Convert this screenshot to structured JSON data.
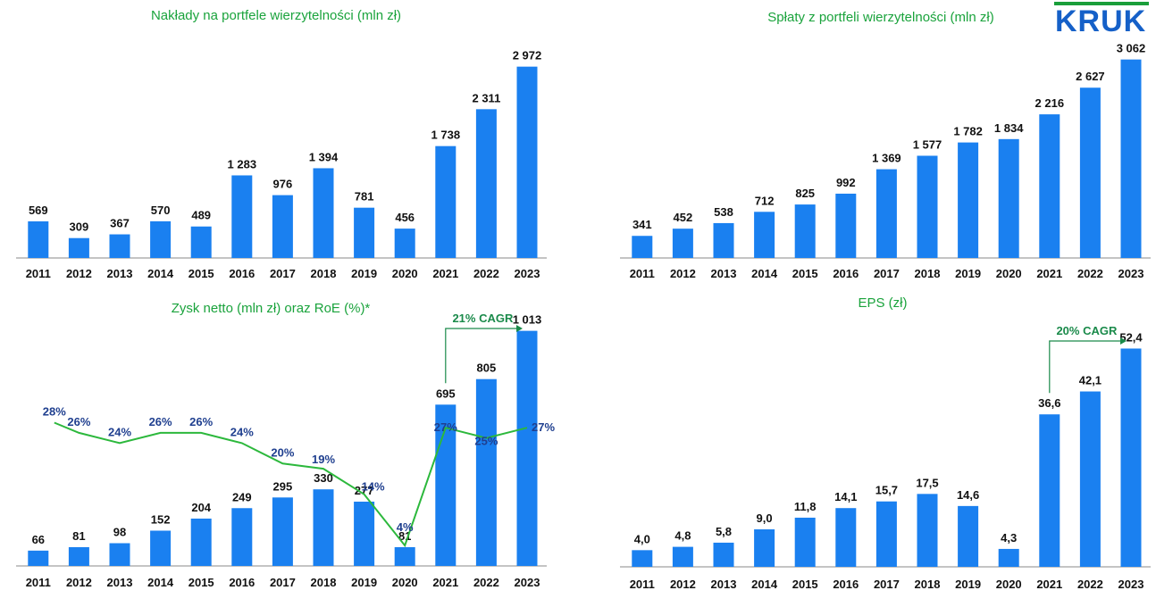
{
  "brand": {
    "logo_text": "KRUK"
  },
  "chart_data": [
    {
      "id": "naklady",
      "type": "bar",
      "title": "Nakłady na portfele wierzytelności (mln zł)",
      "categories": [
        "2011",
        "2012",
        "2013",
        "2014",
        "2015",
        "2016",
        "2017",
        "2018",
        "2019",
        "2020",
        "2021",
        "2022",
        "2023"
      ],
      "values": [
        569,
        309,
        367,
        570,
        489,
        1283,
        976,
        1394,
        781,
        456,
        1738,
        2311,
        2972
      ],
      "value_labels": [
        "569",
        "309",
        "367",
        "570",
        "489",
        "1 283",
        "976",
        "1 394",
        "781",
        "456",
        "1 738",
        "2 311",
        "2 972"
      ],
      "ylim": [
        0,
        3300
      ],
      "bar_color": "#1a80f0"
    },
    {
      "id": "splaty",
      "type": "bar",
      "title": "Spłaty z portfeli wierzytelności  (mln zł)",
      "categories": [
        "2011",
        "2012",
        "2013",
        "2014",
        "2015",
        "2016",
        "2017",
        "2018",
        "2019",
        "2020",
        "2021",
        "2022",
        "2023"
      ],
      "values": [
        341,
        452,
        538,
        712,
        825,
        992,
        1369,
        1577,
        1782,
        1834,
        2216,
        2627,
        3062
      ],
      "value_labels": [
        "341",
        "452",
        "538",
        "712",
        "825",
        "992",
        "1 369",
        "1 577",
        "1 782",
        "1 834",
        "2 216",
        "2 627",
        "3 062"
      ],
      "ylim": [
        0,
        3250
      ],
      "bar_color": "#1a80f0"
    },
    {
      "id": "zysk",
      "type": "bar+line",
      "title": "Zysk netto (mln zł) oraz RoE (%)*",
      "categories": [
        "2011",
        "2012",
        "2013",
        "2014",
        "2015",
        "2016",
        "2017",
        "2018",
        "2019",
        "2020",
        "2021",
        "2022",
        "2023"
      ],
      "values": [
        66,
        81,
        98,
        152,
        204,
        249,
        295,
        330,
        277,
        81,
        695,
        805,
        1013
      ],
      "value_labels": [
        "66",
        "81",
        "98",
        "152",
        "204",
        "249",
        "295",
        "330",
        "277",
        "81",
        "695",
        "805",
        "1 013"
      ],
      "ylim": [
        0,
        1100
      ],
      "bar_color": "#1a80f0",
      "line": {
        "values": [
          28,
          26,
          24,
          26,
          26,
          24,
          20,
          19,
          14,
          4,
          27,
          25,
          27
        ],
        "labels": [
          "28%",
          "26%",
          "24%",
          "26%",
          "26%",
          "24%",
          "20%",
          "19%",
          "14%",
          "4%",
          "27%",
          "25%",
          "27%"
        ],
        "ylim": [
          0,
          60
        ],
        "color": "#2cb83c",
        "label_color": "#1f3f8f"
      },
      "annotation": {
        "text": "21% CAGR",
        "from_category": "2021",
        "to_category": "2023",
        "color": "#1a8a4a"
      }
    },
    {
      "id": "eps",
      "type": "bar",
      "title": "EPS (zł)",
      "categories": [
        "2011",
        "2012",
        "2013",
        "2014",
        "2015",
        "2016",
        "2017",
        "2018",
        "2019",
        "2020",
        "2021",
        "2022",
        "2023"
      ],
      "values": [
        4.0,
        4.8,
        5.8,
        9.0,
        11.8,
        14.1,
        15.7,
        17.5,
        14.6,
        4.3,
        36.6,
        42.1,
        52.4
      ],
      "value_labels": [
        "4,0",
        "4,8",
        "5,8",
        "9,0",
        "11,8",
        "14,1",
        "15,7",
        "17,5",
        "14,6",
        "4,3",
        "36,6",
        "42,1",
        "52,4"
      ],
      "ylim": [
        0,
        60
      ],
      "bar_color": "#1a80f0",
      "annotation": {
        "text": "20% CAGR",
        "from_category": "2021",
        "to_category": "2023",
        "color": "#1a8a4a"
      }
    }
  ]
}
